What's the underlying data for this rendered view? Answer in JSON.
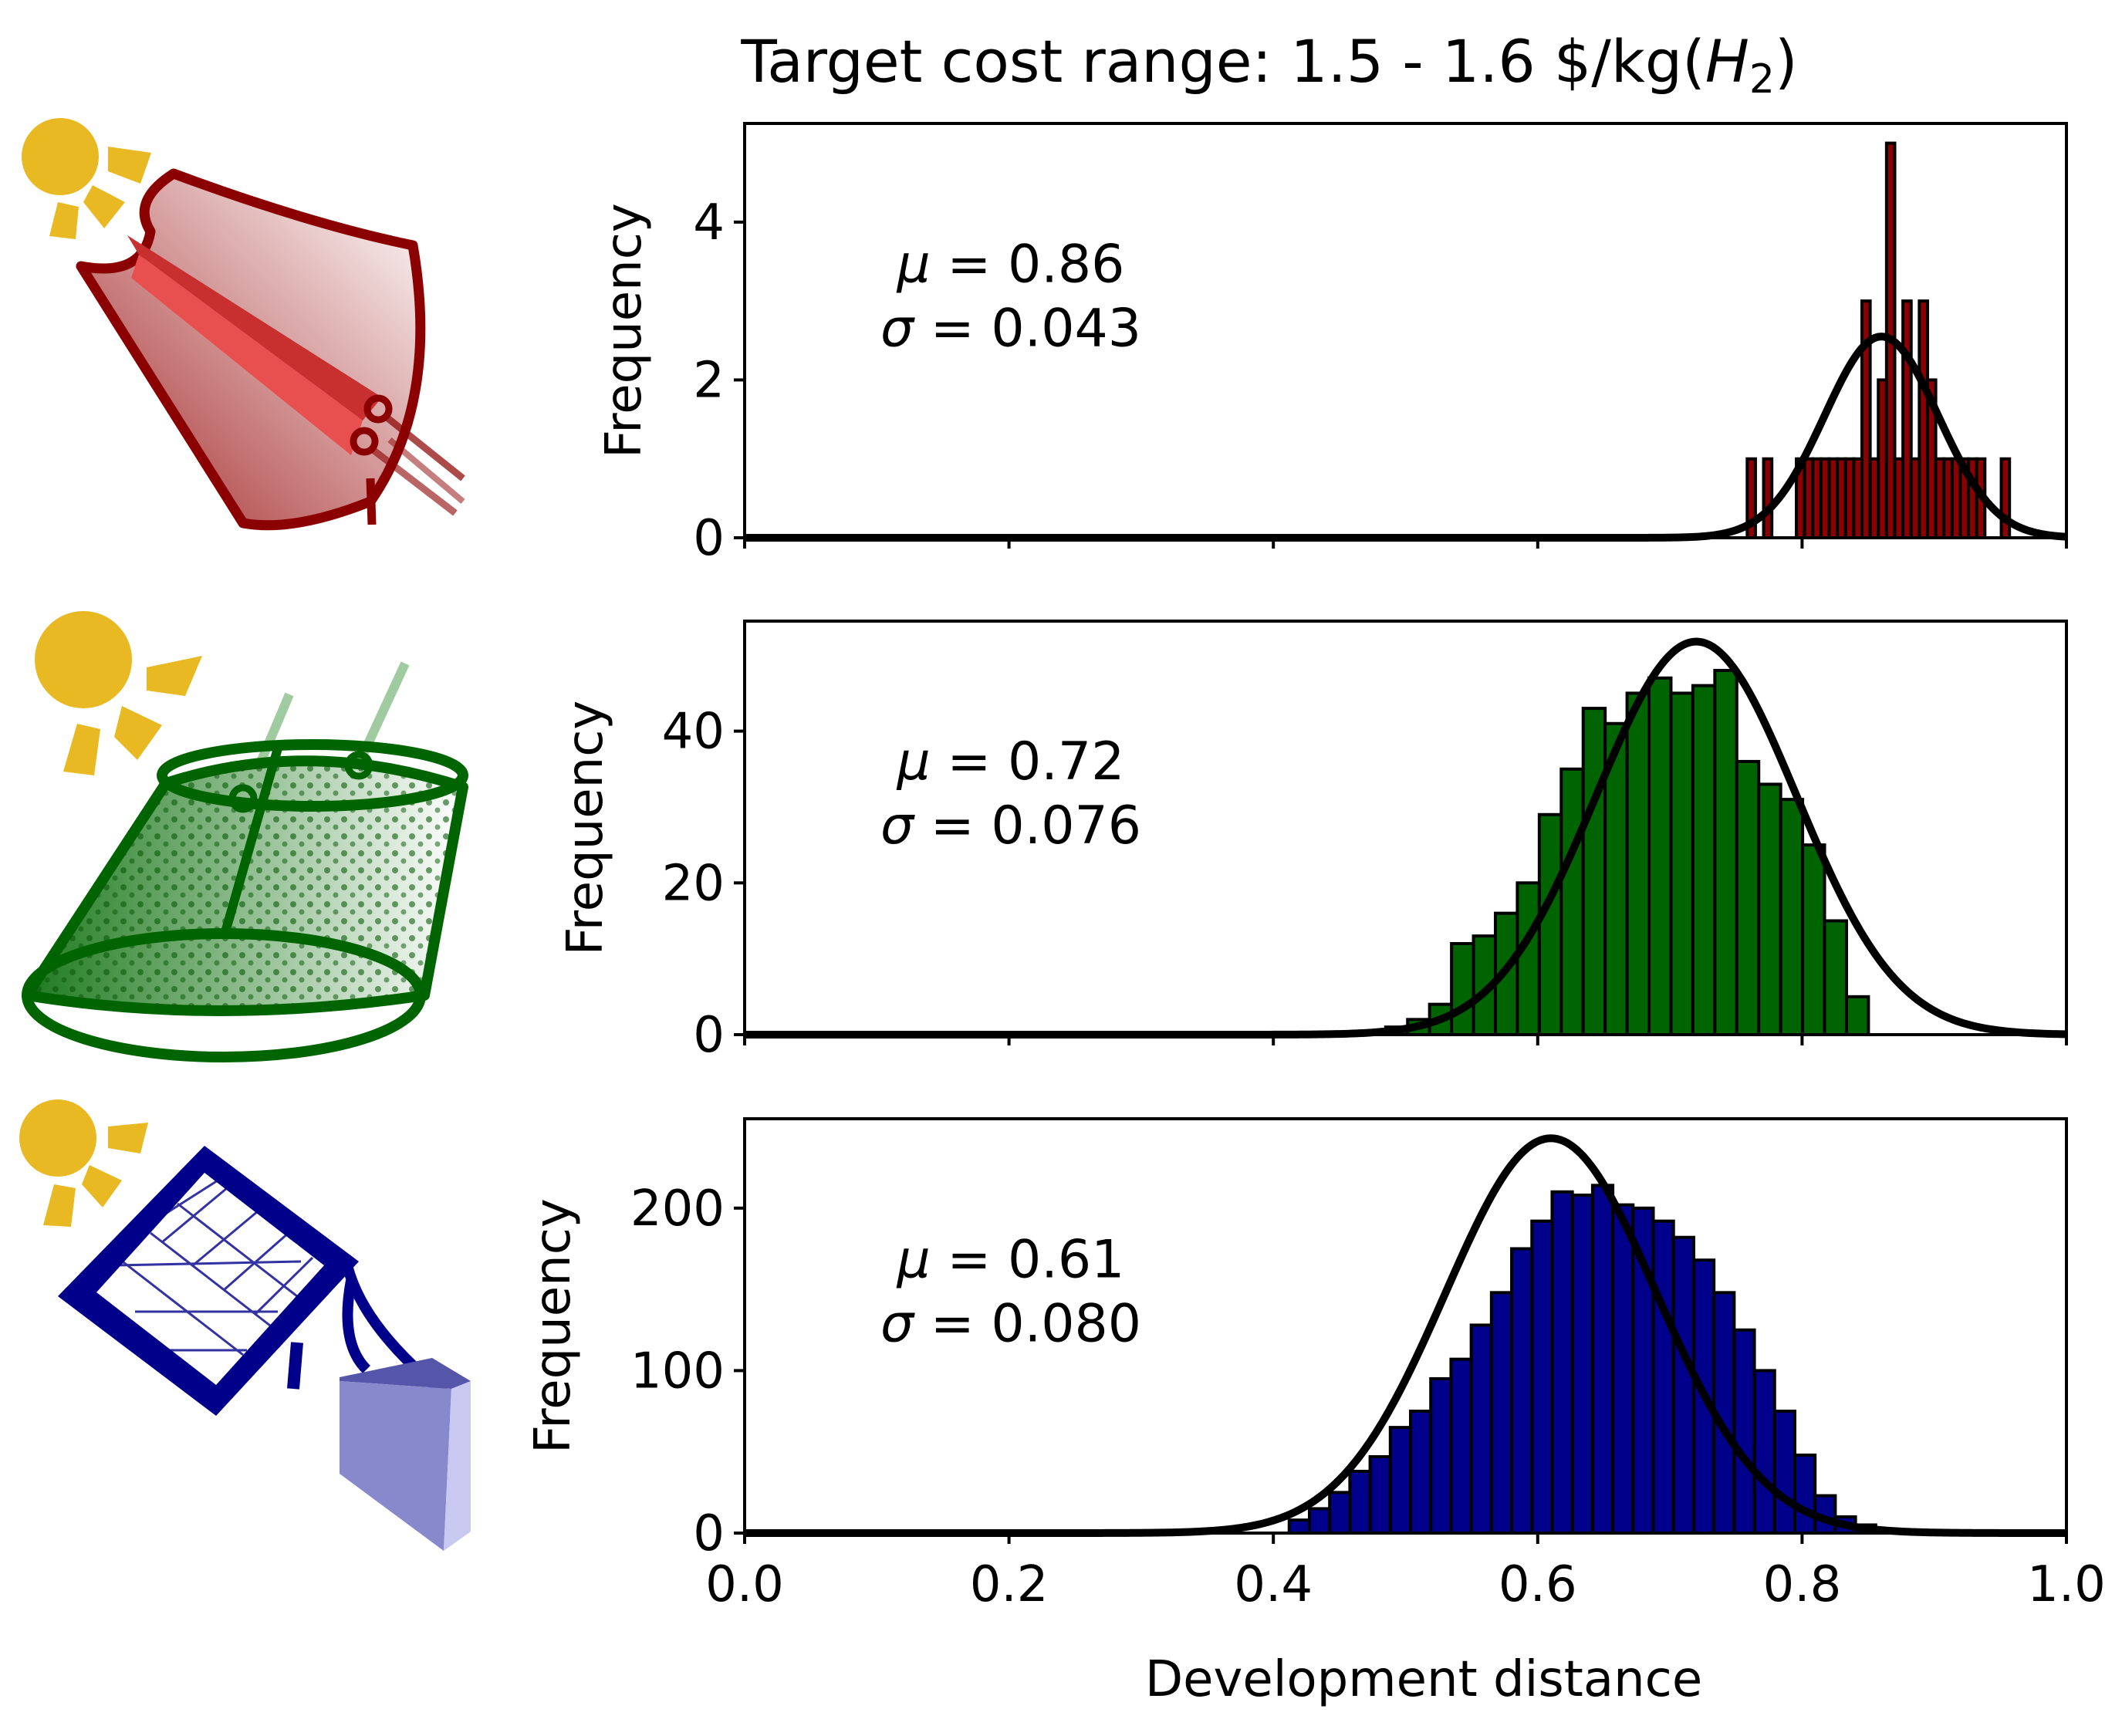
{
  "figure": {
    "title_prefix": "Target cost range: 1.5 - 1.6 $/kg(",
    "title_italic": "H",
    "title_subscript": "2",
    "title_suffix": ")",
    "xlabel": "Development distance"
  },
  "icons": [
    {
      "name": "solar-concentrator-icon",
      "color": "#8b0000"
    },
    {
      "name": "particle-suspension-reactor-icon",
      "color": "#006400"
    },
    {
      "name": "photovoltaic-electrolysis-icon",
      "color": "#00008b"
    }
  ],
  "sun_color": "#e8b923",
  "chart_data": [
    {
      "type": "bar",
      "color": "#8b0000",
      "ylabel": "Frequency",
      "xlim": [
        0.0,
        1.0
      ],
      "ylim": [
        0,
        5.25
      ],
      "yticks": [
        "0",
        "2",
        "4"
      ],
      "ytick_values": [
        0,
        2,
        4
      ],
      "xticks": [
        0.0,
        0.2,
        0.4,
        0.6,
        0.8,
        1.0
      ],
      "bin_start": 0.7585,
      "bin_width": 0.0062,
      "counts": [
        1,
        0,
        1,
        0,
        0,
        0,
        1,
        1,
        1,
        1,
        1,
        1,
        1,
        1,
        3,
        1,
        2,
        5,
        1,
        3,
        1,
        3,
        2,
        1,
        1,
        1,
        1,
        1,
        1,
        0,
        0,
        1
      ],
      "mu_label": "0.86",
      "sigma_label": "0.043",
      "mu": 0.86,
      "sigma": 0.043,
      "fit_peak": 2.55
    },
    {
      "type": "bar",
      "color": "#006400",
      "ylabel": "Frequency",
      "xlim": [
        0.0,
        1.0
      ],
      "ylim": [
        0,
        54.5
      ],
      "yticks": [
        "0",
        "20",
        "40"
      ],
      "ytick_values": [
        0,
        20,
        40
      ],
      "xticks": [
        0.0,
        0.2,
        0.4,
        0.6,
        0.8,
        1.0
      ],
      "bin_start": 0.485,
      "bin_width": 0.0166,
      "counts": [
        1,
        2,
        4,
        12,
        13,
        16,
        20,
        29,
        35,
        43,
        41,
        45,
        47,
        45,
        46,
        48,
        36,
        33,
        31,
        25,
        15,
        5
      ],
      "mu_label": "0.72",
      "sigma_label": "0.076",
      "mu": 0.72,
      "sigma": 0.076,
      "fit_peak": 51.8
    },
    {
      "type": "bar",
      "color": "#00008b",
      "ylabel": "Frequency",
      "xlim": [
        0.0,
        1.0
      ],
      "ylim": [
        0,
        255
      ],
      "yticks": [
        "0",
        "100",
        "200"
      ],
      "ytick_values": [
        0,
        100,
        200
      ],
      "xticks": [
        0.0,
        0.2,
        0.4,
        0.6,
        0.8,
        1.0
      ],
      "bin_start": 0.412,
      "bin_width": 0.0153,
      "counts": [
        8,
        15,
        25,
        38,
        47,
        65,
        75,
        95,
        107,
        128,
        148,
        175,
        192,
        210,
        208,
        214,
        202,
        200,
        192,
        182,
        168,
        148,
        125,
        100,
        75,
        48,
        23,
        10,
        5,
        2,
        1
      ],
      "mu_label": "0.61",
      "sigma_label": "0.080",
      "mu": 0.61,
      "sigma": 0.08,
      "fit_peak": 243
    }
  ]
}
